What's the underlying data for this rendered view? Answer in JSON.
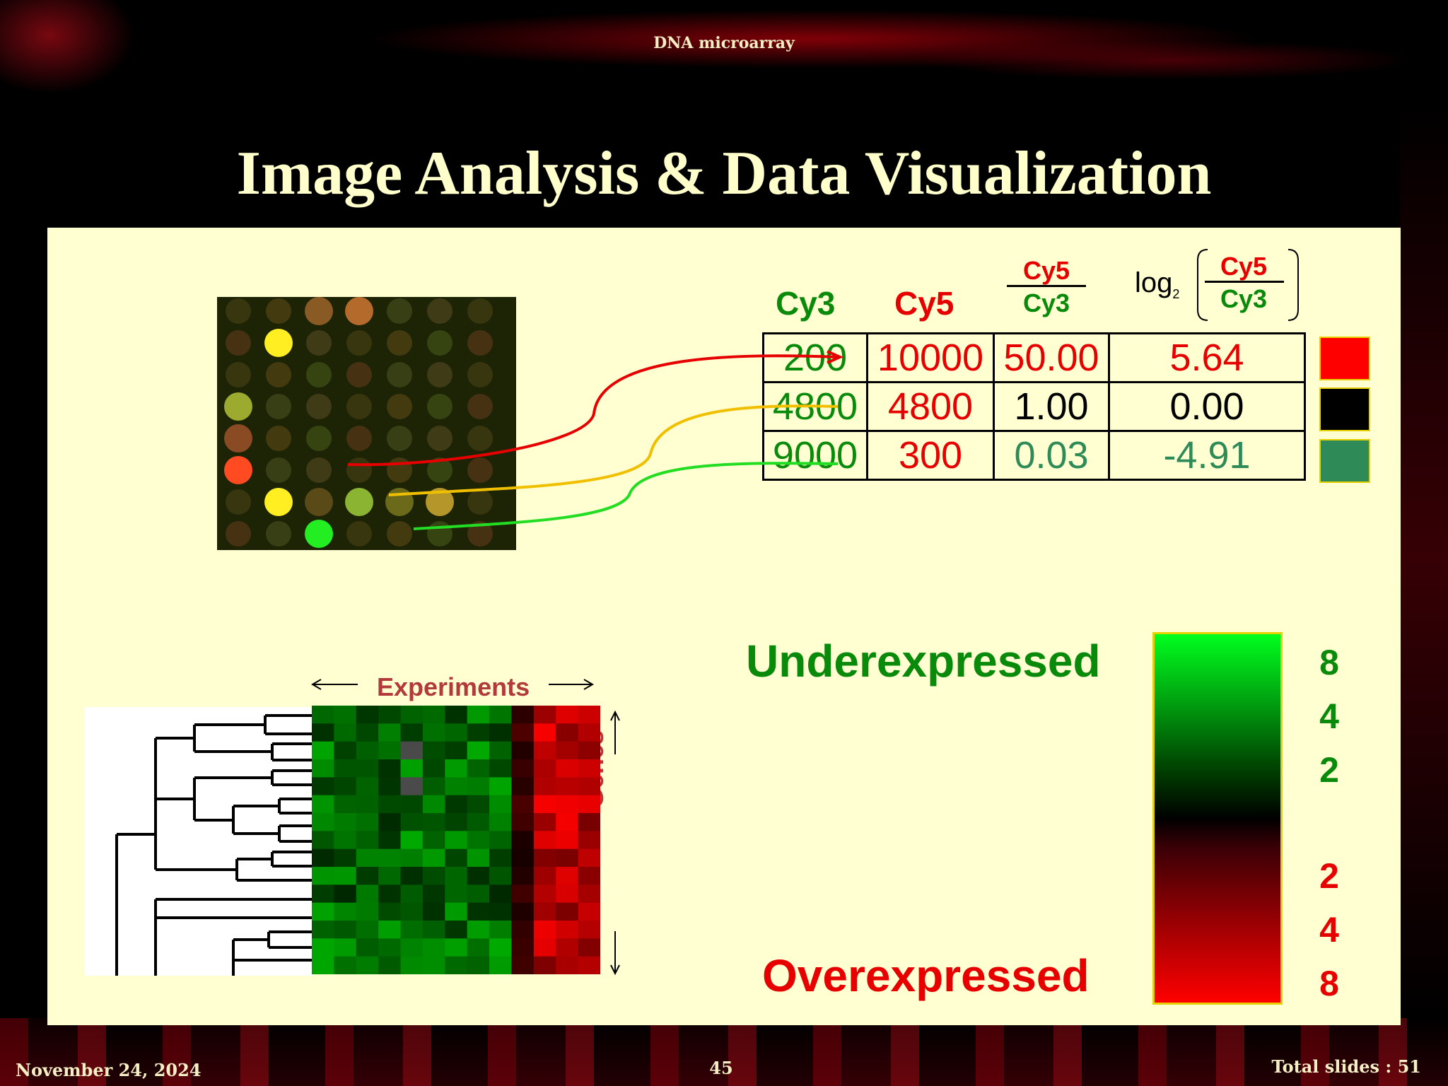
{
  "header": {
    "topic": "DNA microarray"
  },
  "slide": {
    "title": "Image Analysis & Data Visualization"
  },
  "columns": {
    "cy3": "Cy3",
    "cy5": "Cy5",
    "ratio_numerator": "Cy5",
    "ratio_denominator": "Cy3",
    "log_prefix": "log",
    "log_base": "2",
    "log_numerator": "Cy5",
    "log_denominator": "Cy3"
  },
  "table": {
    "rows": [
      {
        "cy3": "200",
        "cy5": "10000",
        "ratio": "50.00",
        "log": "5.64",
        "color": "#ff0000"
      },
      {
        "cy3": "4800",
        "cy5": "4800",
        "ratio": "1.00",
        "log": "0.00",
        "color": "#000000"
      },
      {
        "cy3": "9000",
        "cy5": "300",
        "ratio": "0.03",
        "log": "-4.91",
        "color": "#2e8b57"
      }
    ]
  },
  "legend": {
    "under_label": "Underexpressed",
    "over_label": "Overexpressed",
    "green_scale": [
      "8",
      "4",
      "2"
    ],
    "red_scale": [
      "2",
      "4",
      "8"
    ],
    "green_color": "#00ff1e",
    "red_color": "#ff0000"
  },
  "heatmap": {
    "experiments_label": "Experiments",
    "genes_label": "Genes"
  },
  "footer": {
    "date": "November 24, 2024",
    "page": "45",
    "total": "Total slides : 51"
  }
}
